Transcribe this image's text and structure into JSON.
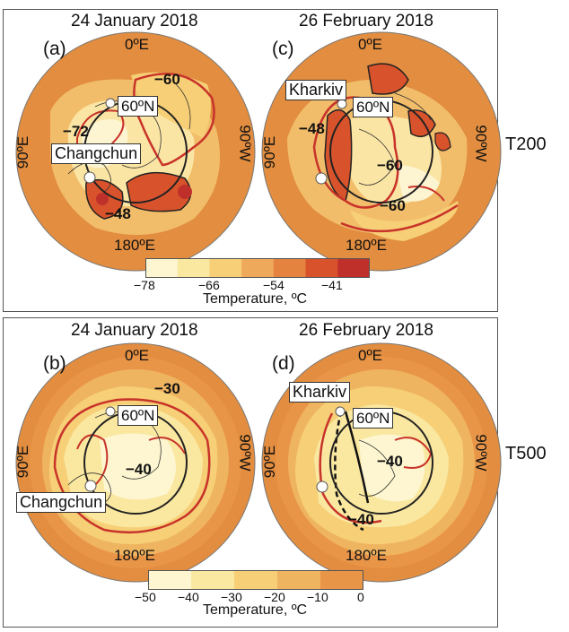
{
  "top_panel": {
    "row_label": "T200",
    "left_map": {
      "letter": "(a)",
      "date": "24 January 2018",
      "lon_top": "0ºE",
      "lon_left": "90ºE",
      "lon_right": "90ºW",
      "lon_bottom": "180ºE",
      "lat_label": "60ºN",
      "city": "Changchun",
      "contour_labels": [
        "−60",
        "−72",
        "−48"
      ]
    },
    "right_map": {
      "letter": "(c)",
      "date": "26 February 2018",
      "lon_top": "0ºE",
      "lon_left": "90ºE",
      "lon_right": "90ºW",
      "lon_bottom": "180ºE",
      "lat_label": "60ºN",
      "city": "Kharkiv",
      "contour_labels": [
        "−48",
        "−60",
        "−60"
      ]
    },
    "colorbar": {
      "ticks": [
        "−78",
        "−66",
        "−54",
        "−41"
      ],
      "title": "Temperature, ºC",
      "colors": [
        "#fdf6d0",
        "#fae7a0",
        "#f6cf76",
        "#efa95a",
        "#e4833f",
        "#d8532c",
        "#c0302b"
      ]
    }
  },
  "bottom_panel": {
    "row_label": "T500",
    "left_map": {
      "letter": "(b)",
      "date": "24 January 2018",
      "lon_top": "0ºE",
      "lon_left": "90ºE",
      "lon_right": "90ºW",
      "lon_bottom": "180ºE",
      "lat_label": "60ºN",
      "city": "Changchun",
      "contour_labels": [
        "−30",
        "−40"
      ]
    },
    "right_map": {
      "letter": "(d)",
      "date": "26 February 2018",
      "lon_top": "0ºE",
      "lon_left": "90ºE",
      "lon_right": "90ºW",
      "lon_bottom": "180ºE",
      "lat_label": "60ºN",
      "city": "Kharkiv",
      "contour_labels": [
        "−40",
        "−40"
      ]
    },
    "colorbar": {
      "ticks": [
        "−50",
        "−40",
        "−30",
        "−20",
        "−10",
        "0"
      ],
      "title": "Temperature, ºC",
      "colors": [
        "#fdf6d0",
        "#fae7a0",
        "#f6cf76",
        "#efb460",
        "#e99548"
      ]
    }
  },
  "colors": {
    "outer": "#e28d3f",
    "mid": "#f1bd6a",
    "inner": "#fbe5a4",
    "core": "#fdf4d2",
    "warm": "#d8532c",
    "hot": "#c0302b",
    "contour_red": "#c8332a"
  }
}
